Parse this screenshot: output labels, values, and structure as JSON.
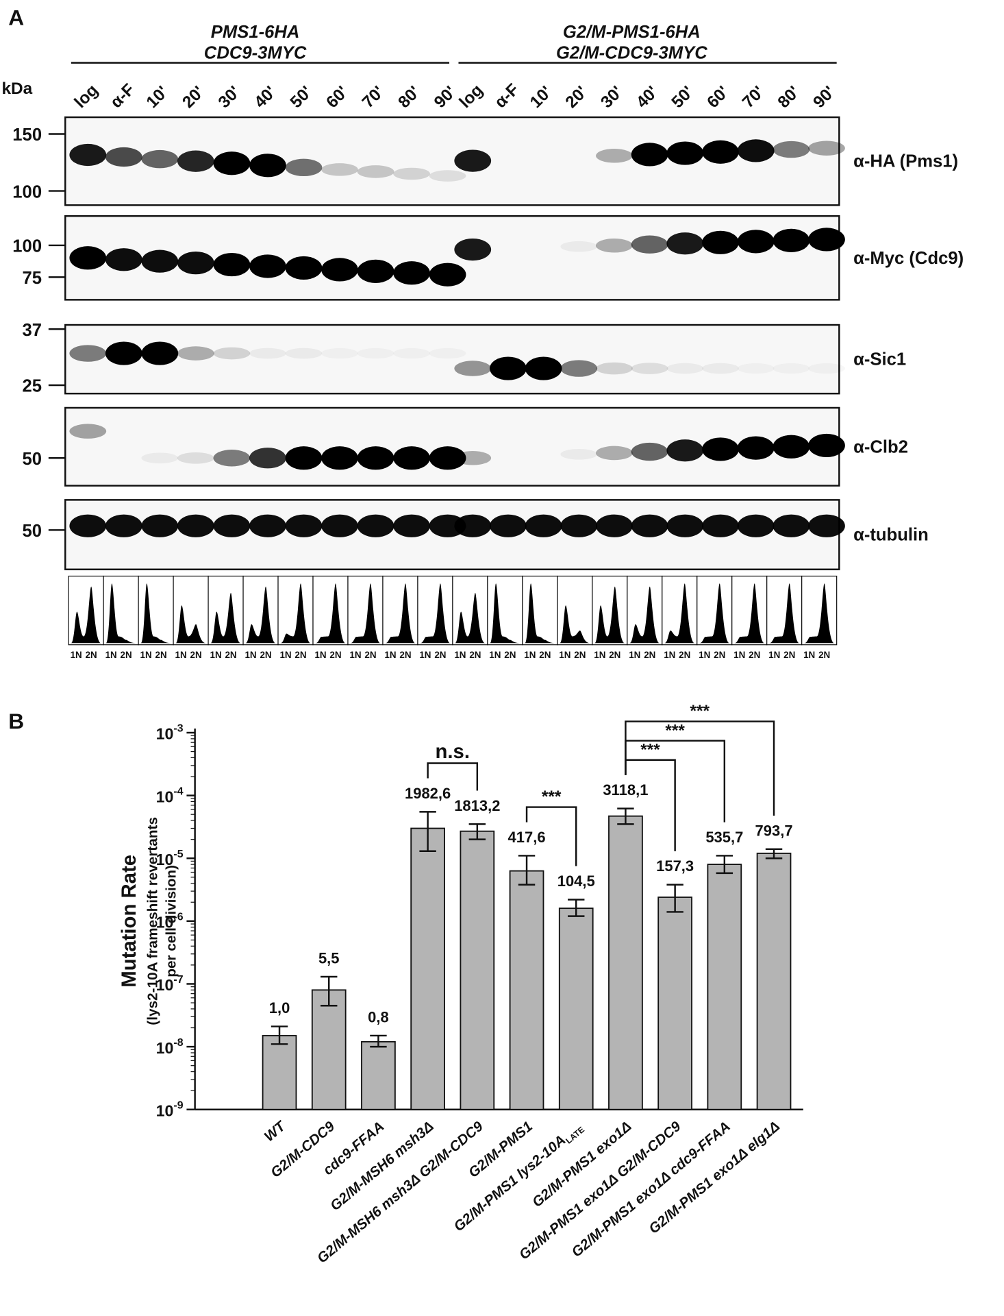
{
  "panel_a": {
    "panel_label": "A",
    "kda": "kDa",
    "groups": [
      [
        "PMS1-6HA",
        "CDC9-3MYC"
      ],
      [
        "G2/M-PMS1-6HA",
        "G2/M-CDC9-3MYC"
      ]
    ],
    "lanes": [
      "log",
      "α-F",
      "10'",
      "20'",
      "30'",
      "40'",
      "50'",
      "60'",
      "70'",
      "80'",
      "90'",
      "log",
      "α-F",
      "10'",
      "20'",
      "30'",
      "40'",
      "50'",
      "60'",
      "70'",
      "80'",
      "90'"
    ],
    "blots": [
      {
        "antibody": "α-HA (Pms1)",
        "markers": [
          150,
          100
        ]
      },
      {
        "antibody": "α-Myc (Cdc9)",
        "markers": [
          100,
          75
        ]
      },
      {
        "antibody": "α-Sic1",
        "markers": [
          37,
          25
        ]
      },
      {
        "antibody": "α-Clb2",
        "markers": [
          50
        ]
      },
      {
        "antibody": "α-tubulin",
        "markers": [
          50
        ]
      }
    ],
    "facs_labels": [
      "1N",
      "2N"
    ]
  },
  "chart_data": {
    "type": "bar",
    "panel_label": "B",
    "ylabel": [
      "Mutation Rate",
      "(lys2-10A frameshift revertants",
      "per cell division)"
    ],
    "categories": [
      "WT",
      "G2/M-CDC9",
      "cdc9-FFAA",
      "G2/M-MSH6 msh3Δ",
      "G2/M-MSH6 msh3Δ G2/M-CDC9",
      "G2/M-PMS1",
      "G2/M-PMS1 lys2-10A",
      "G2/M-PMS1 exo1Δ",
      "G2/M-PMS1 exo1Δ G2/M-CDC9",
      "G2/M-PMS1 exo1Δ cdc9-FFAA",
      "G2/M-PMS1 exo1Δ elg1Δ"
    ],
    "category_subscripts": [
      null,
      null,
      null,
      null,
      null,
      null,
      "LATE",
      null,
      null,
      null,
      null
    ],
    "values": [
      1.5e-08,
      8e-08,
      1.2e-08,
      3e-05,
      2.7e-05,
      6.3e-06,
      1.6e-06,
      4.7e-05,
      2.4e-06,
      8e-06,
      1.2e-05
    ],
    "error_low": [
      1.1e-08,
      4.5e-08,
      1e-08,
      1.3e-05,
      2e-05,
      3.8e-06,
      1.2e-06,
      3.5e-05,
      1.4e-06,
      5.8e-06,
      1e-05
    ],
    "error_high": [
      2.1e-08,
      1.3e-07,
      1.5e-08,
      5.5e-05,
      3.5e-05,
      1.1e-05,
      2.2e-06,
      6.2e-05,
      3.8e-06,
      1.1e-05,
      1.4e-05
    ],
    "value_labels": [
      "1,0",
      "5,5",
      "0,8",
      "1982,6",
      "1813,2",
      "417,6",
      "104,5",
      "3118,1",
      "157,3",
      "535,7",
      "793,7"
    ],
    "color": "#b4b4b4",
    "yscale": "log",
    "ylim": [
      1e-09,
      0.001
    ],
    "yticks": [
      {
        "value": 1e-09,
        "label": [
          "10",
          "-9"
        ]
      },
      {
        "value": 1e-08,
        "label": [
          "10",
          "-8"
        ]
      },
      {
        "value": 1e-07,
        "label": [
          "10",
          "-7"
        ]
      },
      {
        "value": 1e-06,
        "label": [
          "10",
          "-6"
        ]
      },
      {
        "value": 1e-05,
        "label": [
          "10",
          "-5"
        ]
      },
      {
        "value": 0.0001,
        "label": [
          "10",
          "-4"
        ]
      },
      {
        "value": 0.001,
        "label": [
          "10",
          "-3"
        ]
      }
    ],
    "comparisons": [
      {
        "pair": [
          3,
          4
        ],
        "label": "n.s."
      },
      {
        "pair": [
          5,
          6
        ],
        "label": "***"
      },
      {
        "pair": [
          7,
          8
        ],
        "label": "***"
      },
      {
        "pair": [
          7,
          9
        ],
        "label": "***"
      },
      {
        "pair": [
          7,
          10
        ],
        "label": "***"
      }
    ]
  }
}
